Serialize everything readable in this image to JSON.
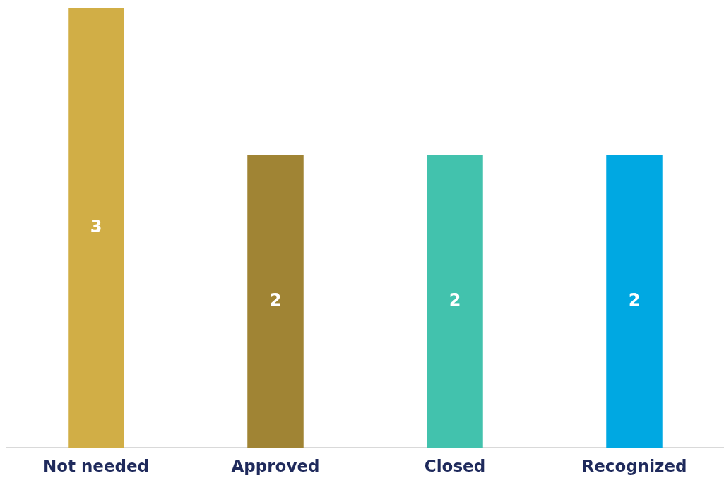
{
  "chart_data": {
    "type": "bar",
    "categories": [
      "Not needed",
      "Approved",
      "Closed",
      "Recognized"
    ],
    "values": [
      3,
      2,
      2,
      2
    ],
    "colors": [
      "#d1ae46",
      "#a08434",
      "#42c2ad",
      "#00a8e2"
    ],
    "ylim": [
      0,
      3
    ],
    "tick_labels": "x",
    "grid": false,
    "legend": false,
    "data_labels": true
  }
}
